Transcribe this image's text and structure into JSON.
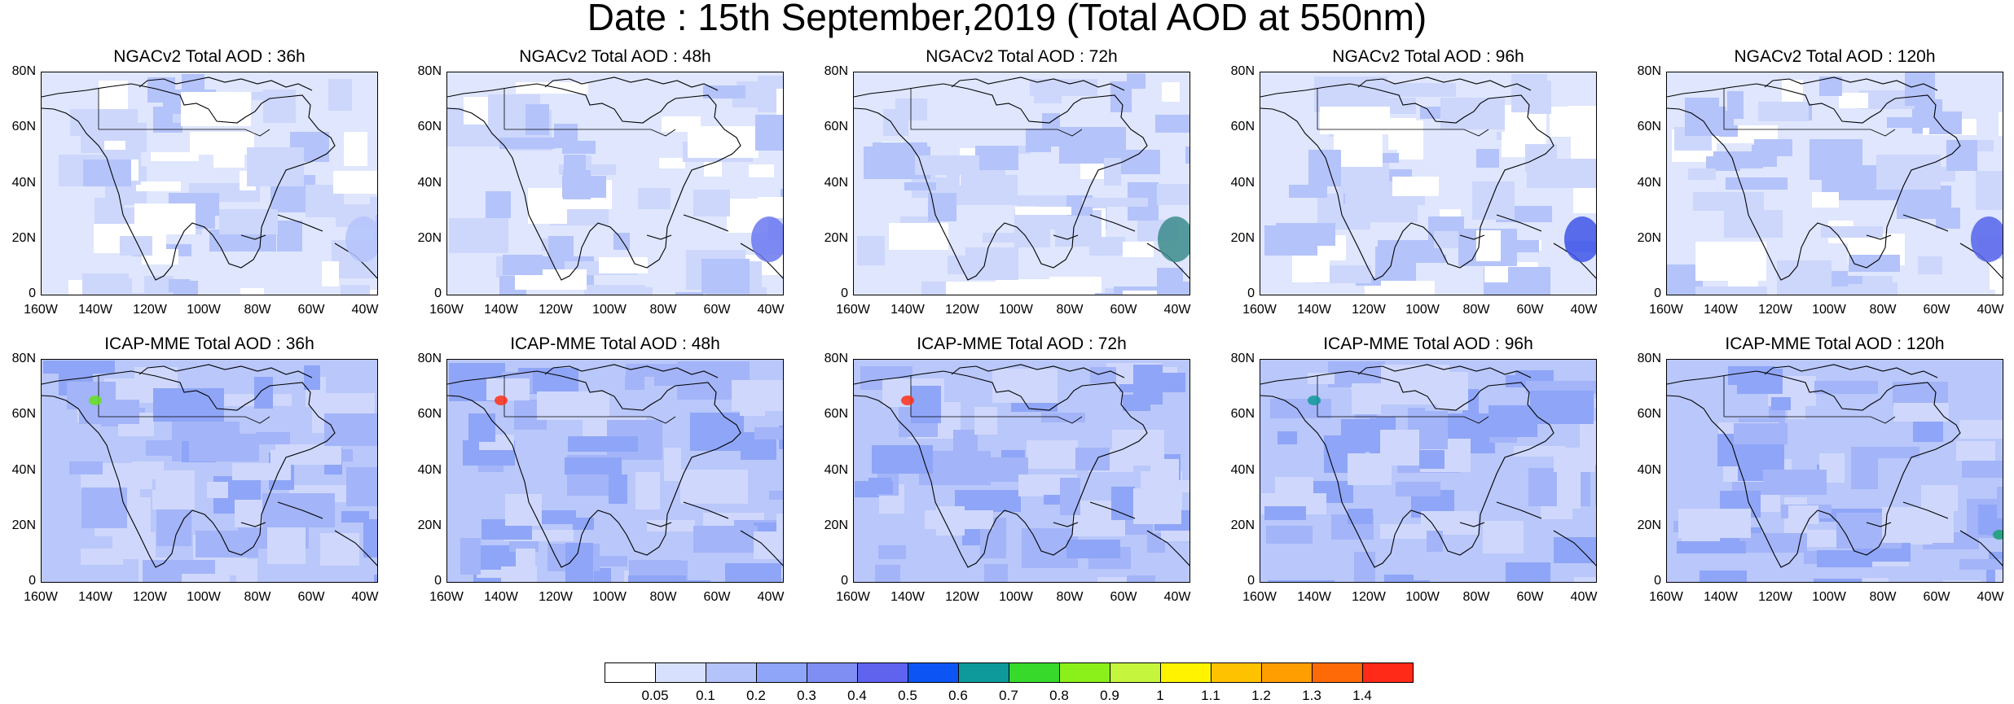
{
  "title": "Date : 15th September,2019 (Total AOD at 550nm)",
  "y_ticks": [
    "80N",
    "60N",
    "40N",
    "20N",
    "0"
  ],
  "x_ticks": [
    "160W",
    "140W",
    "120W",
    "100W",
    "80W",
    "60W",
    "40W"
  ],
  "panels": [
    {
      "title": "NGACv2 Total AOD : 36h",
      "model": "NGACv2",
      "lead": "36h",
      "max_aod_color": "#b4c3fa"
    },
    {
      "title": "NGACv2 Total AOD : 48h",
      "model": "NGACv2",
      "lead": "48h",
      "max_aod_color": "#6b78f0"
    },
    {
      "title": "NGACv2 Total AOD : 72h",
      "model": "NGACv2",
      "lead": "72h",
      "max_aod_color": "#3c8c8c"
    },
    {
      "title": "NGACv2 Total AOD : 96h",
      "model": "NGACv2",
      "lead": "96h",
      "max_aod_color": "#3f55e8"
    },
    {
      "title": "NGACv2 Total AOD : 120h",
      "model": "NGACv2",
      "lead": "120h",
      "max_aod_color": "#5664ea"
    },
    {
      "title": "ICAP-MME Total AOD : 36h",
      "model": "ICAP-MME",
      "lead": "36h",
      "max_aod_color": "#66e020"
    },
    {
      "title": "ICAP-MME Total AOD : 48h",
      "model": "ICAP-MME",
      "lead": "48h",
      "max_aod_color": "#ff3018"
    },
    {
      "title": "ICAP-MME Total AOD : 72h",
      "model": "ICAP-MME",
      "lead": "72h",
      "max_aod_color": "#ff3018"
    },
    {
      "title": "ICAP-MME Total AOD : 96h",
      "model": "ICAP-MME",
      "lead": "96h",
      "max_aod_color": "#0f9a9a"
    },
    {
      "title": "ICAP-MME Total AOD : 120h",
      "model": "ICAP-MME",
      "lead": "120h",
      "max_aod_color": "#18a070"
    }
  ],
  "legend": {
    "labels": [
      "0.05",
      "0.1",
      "0.2",
      "0.3",
      "0.4",
      "0.5",
      "0.6",
      "0.7",
      "0.8",
      "0.9",
      "1",
      "1.1",
      "1.2",
      "1.3",
      "1.4"
    ],
    "colors": [
      "#ffffff",
      "#d7e0fd",
      "#b4c3fa",
      "#8fa5f7",
      "#7e8ef2",
      "#5f63ee",
      "#0c55f4",
      "#0e9a9a",
      "#37d92b",
      "#8bf01a",
      "#c5f53d",
      "#fff300",
      "#ffc200",
      "#ff9e00",
      "#ff6a08",
      "#ff2a18"
    ]
  }
}
